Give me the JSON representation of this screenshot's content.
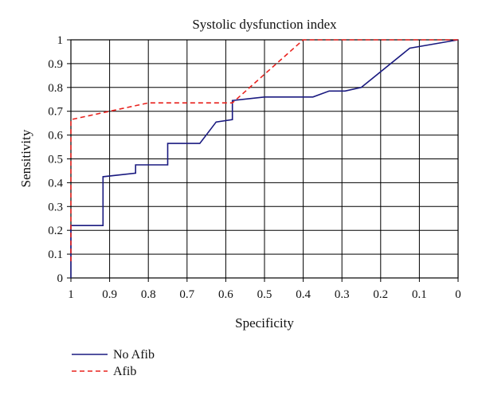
{
  "chart_data": {
    "type": "line",
    "title": "Systolic dysfunction index",
    "xlabel": "Specificity",
    "ylabel": "Sensitivity",
    "xlim": [
      1,
      0
    ],
    "ylim": [
      0,
      1
    ],
    "x_reversed": true,
    "grid": true,
    "legend_position": "bottom-left",
    "x_ticks": [
      {
        "value": 1,
        "label": "1"
      },
      {
        "value": 0.9,
        "label": "0.9"
      },
      {
        "value": 0.8,
        "label": "0.8"
      },
      {
        "value": 0.7,
        "label": "0.7"
      },
      {
        "value": 0.6,
        "label": "0.6"
      },
      {
        "value": 0.5,
        "label": "0.5"
      },
      {
        "value": 0.4,
        "label": "0.4"
      },
      {
        "value": 0.3,
        "label": "0.3"
      },
      {
        "value": 0.2,
        "label": "0.2"
      },
      {
        "value": 0.1,
        "label": "0.1"
      },
      {
        "value": 0,
        "label": "0"
      }
    ],
    "y_ticks": [
      {
        "value": 0,
        "label": "0"
      },
      {
        "value": 0.1,
        "label": "0.1"
      },
      {
        "value": 0.2,
        "label": "0.2"
      },
      {
        "value": 0.3,
        "label": "0.3"
      },
      {
        "value": 0.4,
        "label": "0.4"
      },
      {
        "value": 0.5,
        "label": "0.5"
      },
      {
        "value": 0.6,
        "label": "0.6"
      },
      {
        "value": 0.7,
        "label": "0.7"
      },
      {
        "value": 0.8,
        "label": "0.8"
      },
      {
        "value": 0.9,
        "label": "0.9"
      },
      {
        "value": 1,
        "label": "1"
      }
    ],
    "series": [
      {
        "name": "No Afib",
        "color": "#1a1a80",
        "dash": "solid",
        "points": [
          [
            1,
            0.0
          ],
          [
            1,
            0.22
          ],
          [
            0.917,
            0.22
          ],
          [
            0.917,
            0.425
          ],
          [
            0.833,
            0.44
          ],
          [
            0.833,
            0.475
          ],
          [
            0.75,
            0.475
          ],
          [
            0.75,
            0.565
          ],
          [
            0.667,
            0.565
          ],
          [
            0.625,
            0.655
          ],
          [
            0.583,
            0.665
          ],
          [
            0.583,
            0.745
          ],
          [
            0.5,
            0.76
          ],
          [
            0.375,
            0.76
          ],
          [
            0.333,
            0.785
          ],
          [
            0.292,
            0.785
          ],
          [
            0.25,
            0.8
          ],
          [
            0.125,
            0.965
          ],
          [
            0,
            1.0
          ]
        ]
      },
      {
        "name": "Afib",
        "color": "#e8231f",
        "dash": "dashed",
        "points": [
          [
            1,
            0.07
          ],
          [
            1,
            0.665
          ],
          [
            0.9,
            0.7
          ],
          [
            0.8,
            0.735
          ],
          [
            0.583,
            0.735
          ],
          [
            0.4,
            1.0
          ],
          [
            0,
            1.0
          ]
        ]
      }
    ]
  }
}
